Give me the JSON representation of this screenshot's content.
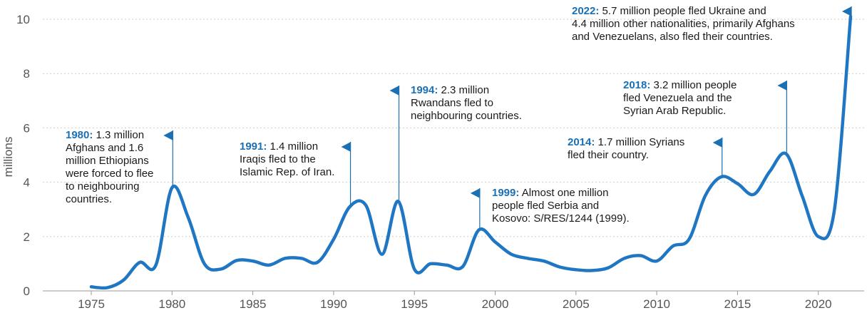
{
  "chart_data": {
    "type": "line",
    "title": "",
    "xlabel": "",
    "ylabel": "millions",
    "xlim": [
      1973,
      2023
    ],
    "ylim": [
      0,
      10.4
    ],
    "x_ticks": [
      "1975",
      "1980",
      "1985",
      "1990",
      "1995",
      "2000",
      "2005",
      "2010",
      "2015",
      "2020"
    ],
    "y_ticks": [
      "0",
      "2",
      "4",
      "6",
      "8",
      "10"
    ],
    "grid": "horizontal",
    "colors": {
      "line": "#1f77c4",
      "annotation": "#1b6fb3",
      "grid": "#cccccc",
      "axis": "#999999"
    },
    "series": [
      {
        "x": [
          1975,
          1976,
          1977,
          1978,
          1979,
          1980,
          1981,
          1982,
          1983,
          1984,
          1985,
          1986,
          1987,
          1988,
          1989,
          1990,
          1991,
          1992,
          1993,
          1994,
          1995,
          1996,
          1997,
          1998,
          1999,
          2000,
          2001,
          2002,
          2003,
          2004,
          2005,
          2006,
          2007,
          2008,
          2009,
          2010,
          2011,
          2012,
          2013,
          2014,
          2015,
          2016,
          2017,
          2018,
          2019,
          2020,
          2021,
          2022
        ],
        "values": [
          0.15,
          0.12,
          0.4,
          1.05,
          0.95,
          3.8,
          2.7,
          1.0,
          0.8,
          1.12,
          1.1,
          0.95,
          1.2,
          1.2,
          1.05,
          1.9,
          3.1,
          3.15,
          1.35,
          3.3,
          0.8,
          1.0,
          0.95,
          0.9,
          2.25,
          1.8,
          1.35,
          1.2,
          1.1,
          0.88,
          0.78,
          0.75,
          0.85,
          1.2,
          1.3,
          1.1,
          1.65,
          1.9,
          3.5,
          4.2,
          3.95,
          3.55,
          4.4,
          5.05,
          3.5,
          2.0,
          3.0,
          10.1
        ]
      }
    ],
    "annotations": [
      {
        "year": "1980:",
        "x": 1980,
        "y": 3.8,
        "lines": [
          " 1.3 million",
          "Afghans and 1.6",
          "million Ethiopians",
          "were forced to flee",
          "to neighbouring",
          "countries."
        ]
      },
      {
        "year": "1991:",
        "x": 1991,
        "y": 3.1,
        "lines": [
          " 1.4 million",
          "Iraqis fled to the",
          "Islamic Rep. of Iran."
        ]
      },
      {
        "year": "1994:",
        "x": 1994,
        "y": 3.3,
        "lines": [
          " 2.3 million",
          "Rwandans fled to",
          "neighbouring countries."
        ]
      },
      {
        "year": "1999:",
        "x": 1999,
        "y": 2.25,
        "lines": [
          " Almost one million",
          "people fled Serbia and",
          "Kosovo: S/RES/1244 (1999)."
        ]
      },
      {
        "year": "2014:",
        "x": 2014,
        "y": 4.2,
        "lines": [
          " 1.7 million Syrians",
          "fled their country."
        ]
      },
      {
        "year": "2018:",
        "x": 2018,
        "y": 5.05,
        "lines": [
          " 3.2 million people",
          "fled Venezuela and the",
          "Syrian Arab Republic."
        ]
      },
      {
        "year": "2022:",
        "x": 2022,
        "y": 10.1,
        "lines": [
          " 5.7 million people fled Ukraine and",
          "4.4 million other nationalities, primarily Afghans",
          "and Venezuelans, also fled their countries."
        ]
      }
    ]
  }
}
